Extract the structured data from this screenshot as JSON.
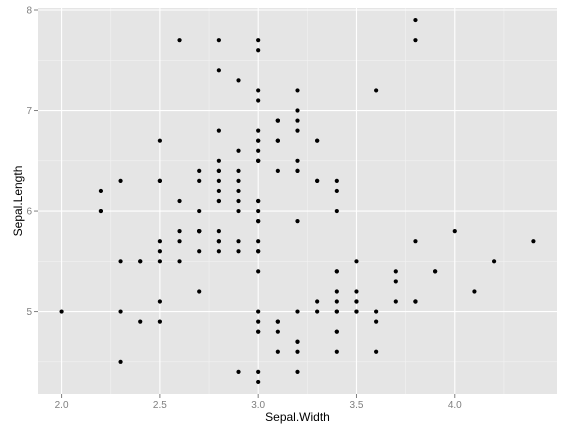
{
  "chart_data": {
    "type": "scatter",
    "title": "",
    "xlabel": "Sepal.Width",
    "ylabel": "Sepal.Length",
    "xlim": [
      1.88,
      4.52
    ],
    "ylim": [
      4.18,
      8.02
    ],
    "x_ticks": [
      2.0,
      2.5,
      3.0,
      3.5,
      4.0
    ],
    "x_tick_labels": [
      "2.0",
      "2.5",
      "3.0",
      "3.5",
      "4.0"
    ],
    "y_ticks": [
      5,
      6,
      7,
      8
    ],
    "y_tick_labels": [
      "5",
      "6",
      "7",
      "8"
    ],
    "grid": true,
    "legend": "none",
    "colors": {
      "panel": "#e5e5e5",
      "grid_major": "#ffffff",
      "grid_minor": "#f2f2f2",
      "point": "#000000"
    },
    "points": [
      [
        3.5,
        5.1
      ],
      [
        3.0,
        4.9
      ],
      [
        3.2,
        4.7
      ],
      [
        3.1,
        4.6
      ],
      [
        3.6,
        5.0
      ],
      [
        3.9,
        5.4
      ],
      [
        3.4,
        4.6
      ],
      [
        3.4,
        5.0
      ],
      [
        2.9,
        4.4
      ],
      [
        3.1,
        4.9
      ],
      [
        3.7,
        5.4
      ],
      [
        3.4,
        4.8
      ],
      [
        3.0,
        4.8
      ],
      [
        3.0,
        4.3
      ],
      [
        4.0,
        5.8
      ],
      [
        4.4,
        5.7
      ],
      [
        3.9,
        5.4
      ],
      [
        3.5,
        5.1
      ],
      [
        3.8,
        5.7
      ],
      [
        3.8,
        5.1
      ],
      [
        3.4,
        5.4
      ],
      [
        3.7,
        5.1
      ],
      [
        3.6,
        4.6
      ],
      [
        3.3,
        5.1
      ],
      [
        3.4,
        4.8
      ],
      [
        3.0,
        5.0
      ],
      [
        3.4,
        5.0
      ],
      [
        3.5,
        5.2
      ],
      [
        3.4,
        5.2
      ],
      [
        3.2,
        4.7
      ],
      [
        3.1,
        4.8
      ],
      [
        3.4,
        5.4
      ],
      [
        4.1,
        5.2
      ],
      [
        4.2,
        5.5
      ],
      [
        3.1,
        4.9
      ],
      [
        3.2,
        5.0
      ],
      [
        3.5,
        5.5
      ],
      [
        3.6,
        4.9
      ],
      [
        3.0,
        4.4
      ],
      [
        3.4,
        5.1
      ],
      [
        3.5,
        5.0
      ],
      [
        2.3,
        4.5
      ],
      [
        3.2,
        4.4
      ],
      [
        3.5,
        5.0
      ],
      [
        3.8,
        5.1
      ],
      [
        3.0,
        4.8
      ],
      [
        3.8,
        5.1
      ],
      [
        3.2,
        4.6
      ],
      [
        3.7,
        5.3
      ],
      [
        3.3,
        5.0
      ],
      [
        3.2,
        7.0
      ],
      [
        3.2,
        6.4
      ],
      [
        3.1,
        6.9
      ],
      [
        2.3,
        5.5
      ],
      [
        2.8,
        6.5
      ],
      [
        2.8,
        5.7
      ],
      [
        3.3,
        6.3
      ],
      [
        2.4,
        4.9
      ],
      [
        2.9,
        6.6
      ],
      [
        2.7,
        5.2
      ],
      [
        2.0,
        5.0
      ],
      [
        3.0,
        5.9
      ],
      [
        2.2,
        6.0
      ],
      [
        2.9,
        6.1
      ],
      [
        2.9,
        5.6
      ],
      [
        3.1,
        6.7
      ],
      [
        3.0,
        5.6
      ],
      [
        2.7,
        5.8
      ],
      [
        2.2,
        6.2
      ],
      [
        2.5,
        5.6
      ],
      [
        3.2,
        5.9
      ],
      [
        2.8,
        6.1
      ],
      [
        2.5,
        6.3
      ],
      [
        2.8,
        6.1
      ],
      [
        2.9,
        6.4
      ],
      [
        3.0,
        6.6
      ],
      [
        2.8,
        6.8
      ],
      [
        3.0,
        6.7
      ],
      [
        2.9,
        6.0
      ],
      [
        2.6,
        5.7
      ],
      [
        2.4,
        5.5
      ],
      [
        2.4,
        5.5
      ],
      [
        2.7,
        5.8
      ],
      [
        2.7,
        6.0
      ],
      [
        3.0,
        5.4
      ],
      [
        3.4,
        6.0
      ],
      [
        3.1,
        6.7
      ],
      [
        2.3,
        6.3
      ],
      [
        3.0,
        5.6
      ],
      [
        2.5,
        5.5
      ],
      [
        2.6,
        5.5
      ],
      [
        3.0,
        6.1
      ],
      [
        2.6,
        5.8
      ],
      [
        2.3,
        5.0
      ],
      [
        2.7,
        5.6
      ],
      [
        3.0,
        5.7
      ],
      [
        2.9,
        5.7
      ],
      [
        2.9,
        6.2
      ],
      [
        2.5,
        5.1
      ],
      [
        2.8,
        5.7
      ],
      [
        3.3,
        6.3
      ],
      [
        2.7,
        5.8
      ],
      [
        3.0,
        7.1
      ],
      [
        2.9,
        6.3
      ],
      [
        3.0,
        6.5
      ],
      [
        3.0,
        7.6
      ],
      [
        2.5,
        4.9
      ],
      [
        2.9,
        7.3
      ],
      [
        2.5,
        6.7
      ],
      [
        3.6,
        7.2
      ],
      [
        3.2,
        6.5
      ],
      [
        2.7,
        6.4
      ],
      [
        3.0,
        6.8
      ],
      [
        2.5,
        5.7
      ],
      [
        2.8,
        5.8
      ],
      [
        3.2,
        6.4
      ],
      [
        3.0,
        6.5
      ],
      [
        3.8,
        7.7
      ],
      [
        2.6,
        7.7
      ],
      [
        2.2,
        6.0
      ],
      [
        3.2,
        6.9
      ],
      [
        2.8,
        5.6
      ],
      [
        2.8,
        7.7
      ],
      [
        2.7,
        6.3
      ],
      [
        3.3,
        6.7
      ],
      [
        3.2,
        7.2
      ],
      [
        2.8,
        6.2
      ],
      [
        3.0,
        6.1
      ],
      [
        2.8,
        6.4
      ],
      [
        3.0,
        7.2
      ],
      [
        2.8,
        7.4
      ],
      [
        3.8,
        7.9
      ],
      [
        2.8,
        6.4
      ],
      [
        2.8,
        6.3
      ],
      [
        2.6,
        6.1
      ],
      [
        3.0,
        7.7
      ],
      [
        3.4,
        6.3
      ],
      [
        3.1,
        6.4
      ],
      [
        3.0,
        6.0
      ],
      [
        3.1,
        6.9
      ],
      [
        3.1,
        6.7
      ],
      [
        3.1,
        6.9
      ],
      [
        2.7,
        5.8
      ],
      [
        3.2,
        6.8
      ],
      [
        3.3,
        6.7
      ],
      [
        3.0,
        6.7
      ],
      [
        2.5,
        6.3
      ],
      [
        3.0,
        6.5
      ],
      [
        3.4,
        6.2
      ],
      [
        3.0,
        5.9
      ]
    ]
  }
}
